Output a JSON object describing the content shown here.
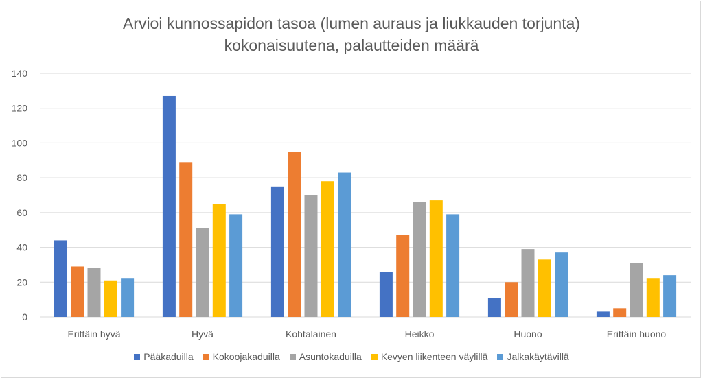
{
  "chart_data": {
    "type": "bar",
    "title_line1": "Arvioi kunnossapidon tasoa (lumen auraus ja liukkauden torjunta)",
    "title_line2": "kokonaisuutena, palautteiden määrä",
    "xlabel": "",
    "ylabel": "",
    "ylim": [
      0,
      140
    ],
    "yticks": [
      0,
      20,
      40,
      60,
      80,
      100,
      120,
      140
    ],
    "grid": true,
    "legend_position": "bottom",
    "categories": [
      "Erittäin hyvä",
      "Hyvä",
      "Kohtalainen",
      "Heikko",
      "Huono",
      "Erittäin huono"
    ],
    "series": [
      {
        "name": "Pääkaduilla",
        "color": "#4472c4",
        "values": [
          44,
          127,
          75,
          26,
          11,
          3
        ]
      },
      {
        "name": "Kokoojakaduilla",
        "color": "#ed7d31",
        "values": [
          29,
          89,
          95,
          47,
          20,
          5
        ]
      },
      {
        "name": "Asuntokaduilla",
        "color": "#a5a5a5",
        "values": [
          28,
          51,
          70,
          66,
          39,
          31
        ]
      },
      {
        "name": "Kevyen liikenteen väylillä",
        "color": "#ffc000",
        "values": [
          21,
          65,
          78,
          67,
          33,
          22
        ]
      },
      {
        "name": "Jalkakäytävillä",
        "color": "#5b9bd5",
        "values": [
          22,
          59,
          83,
          59,
          37,
          24
        ]
      }
    ]
  }
}
